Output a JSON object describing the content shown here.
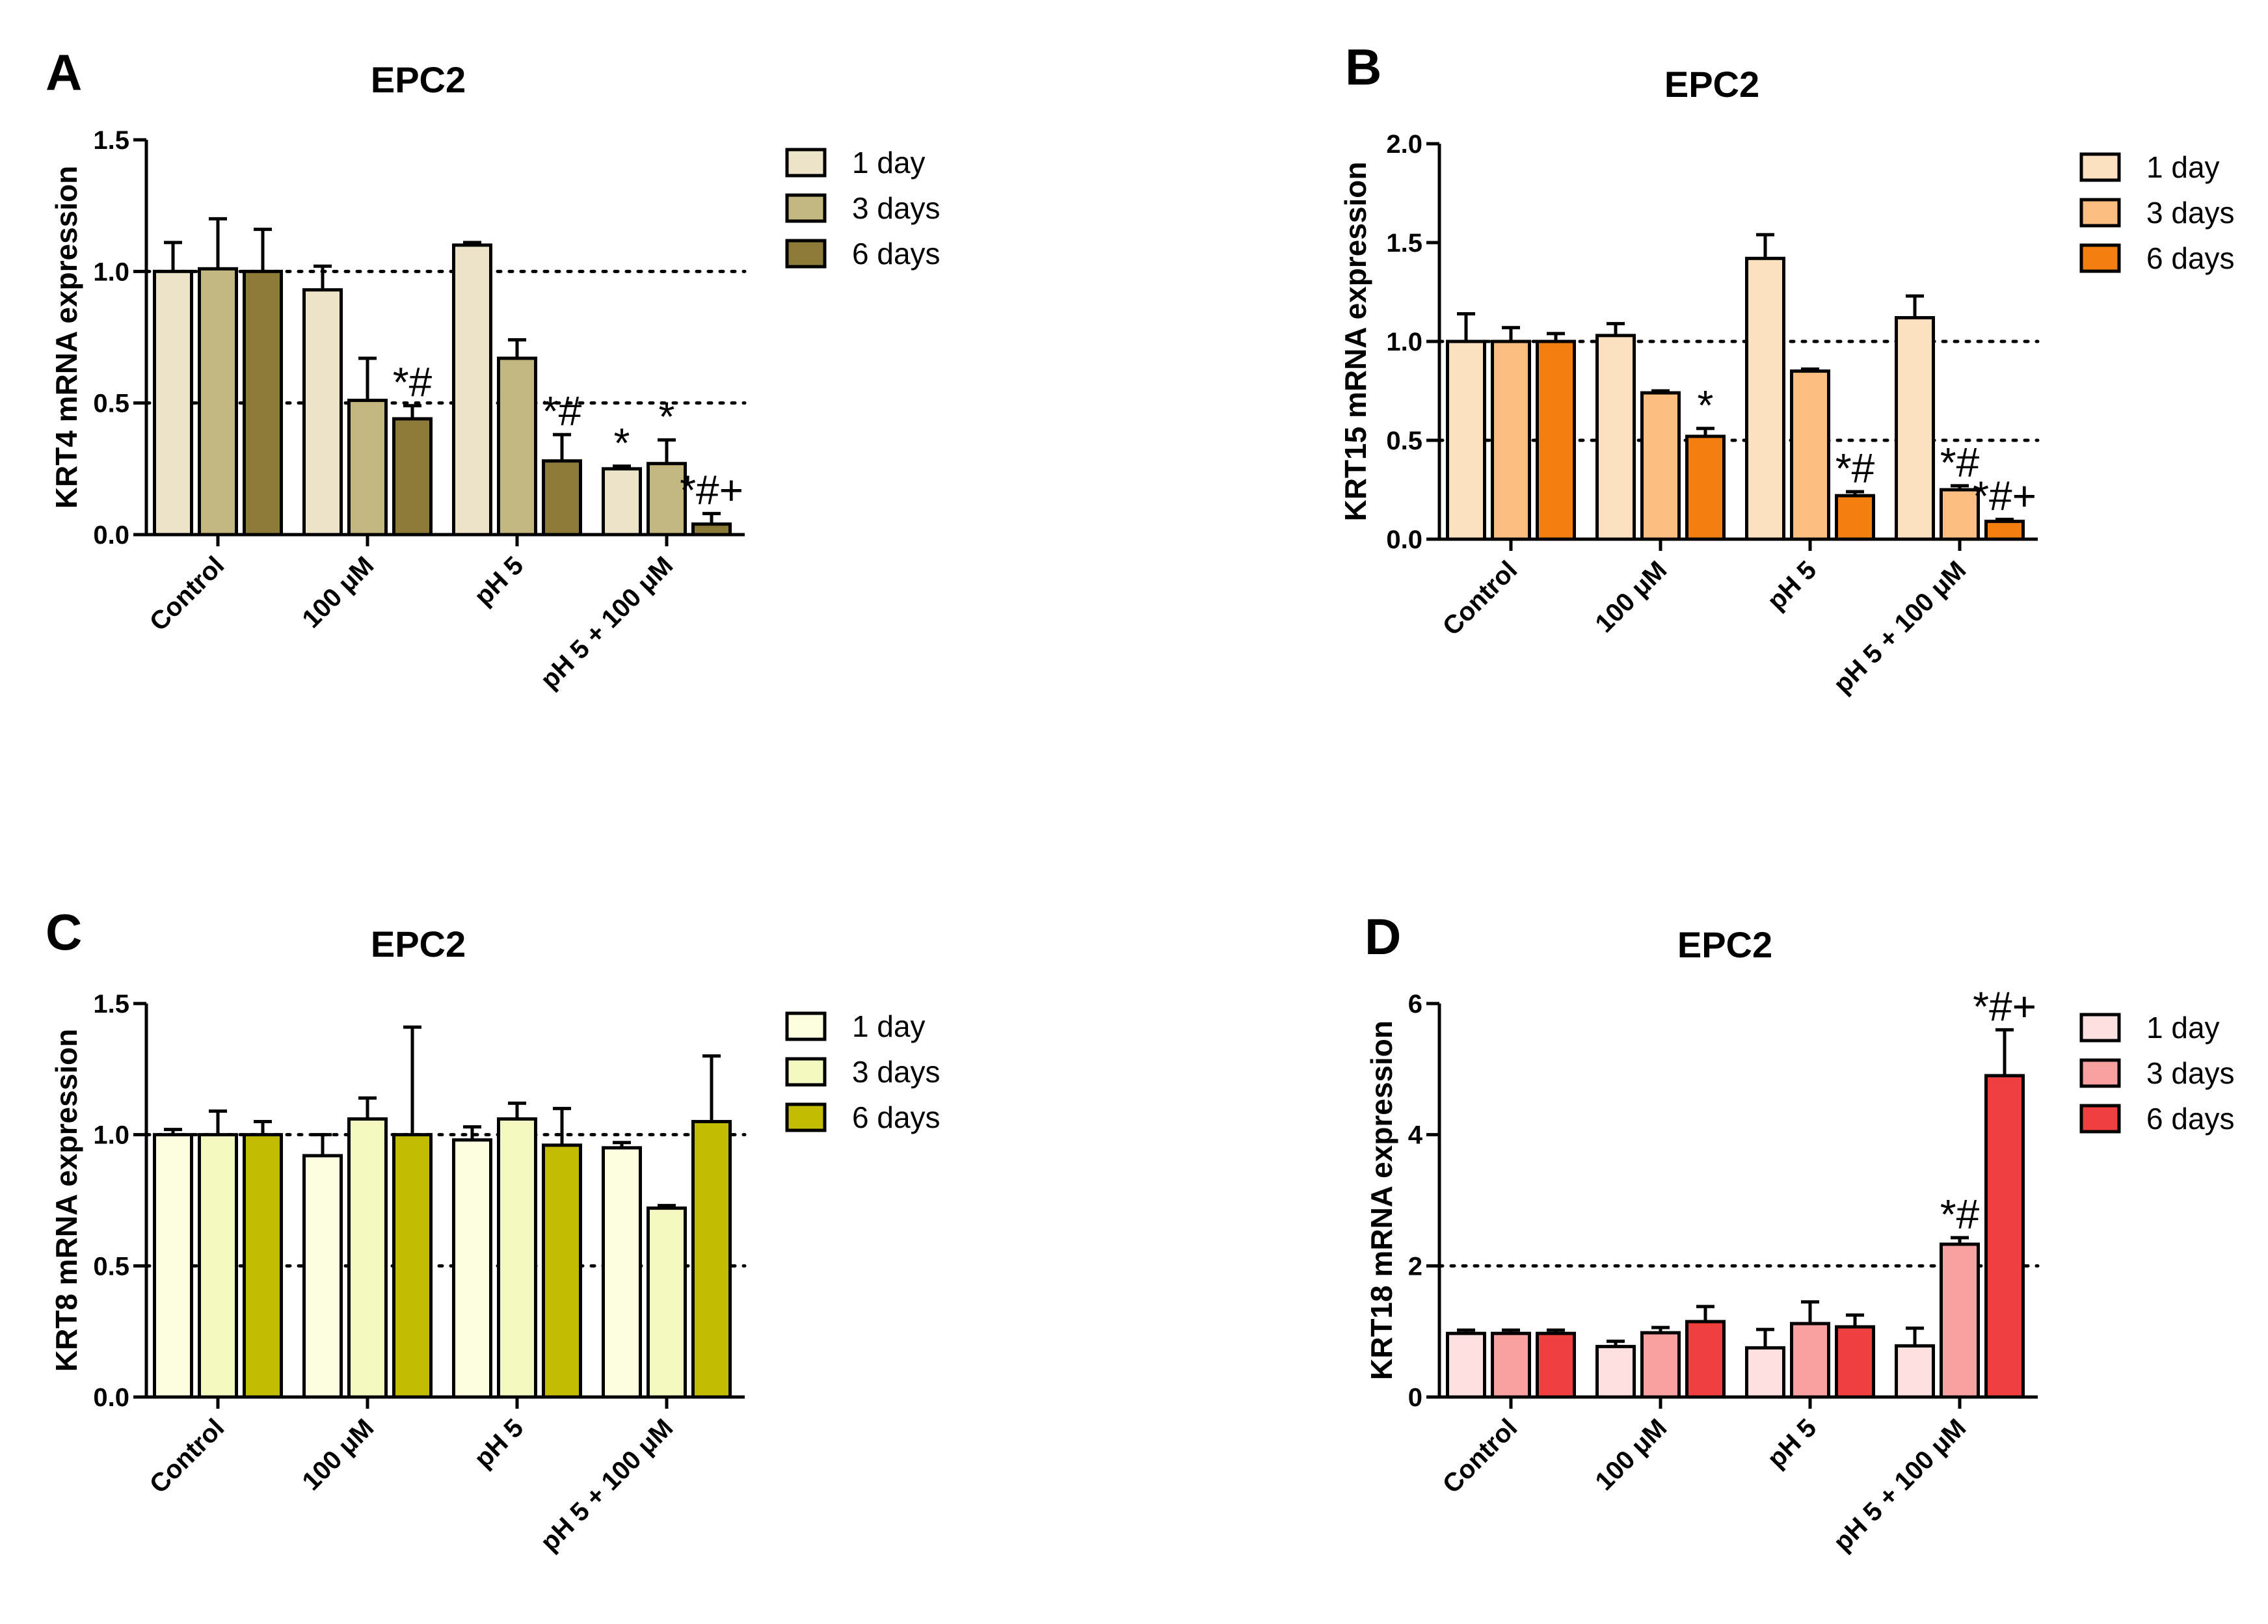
{
  "series_names": [
    "1 day",
    "3 days",
    "6 days"
  ],
  "chart_data": [
    {
      "panel": "A",
      "type": "bar",
      "title": "EPC2",
      "ylabel": "KRT4 mRNA expression",
      "categories": [
        "Control",
        "100 μM",
        "pH 5",
        "pH 5 + 100 μM"
      ],
      "ylim": [
        0,
        1.5
      ],
      "yticks": [
        "0.0",
        "0.5",
        "1.0",
        "1.5"
      ],
      "reference_lines": [
        0.5,
        1.0
      ],
      "legend_position": "right",
      "colors": [
        "#ece4c8",
        "#c3b780",
        "#8c7a38"
      ],
      "series": [
        {
          "name": "1 day",
          "values": [
            1.0,
            0.93,
            1.1,
            0.25
          ],
          "errors": [
            0.11,
            0.09,
            0.01,
            0.01
          ],
          "annotations": [
            "",
            "",
            "",
            "*"
          ]
        },
        {
          "name": "3 days",
          "values": [
            1.01,
            0.51,
            0.67,
            0.27
          ],
          "errors": [
            0.19,
            0.16,
            0.07,
            0.09
          ],
          "annotations": [
            "",
            "",
            "",
            "*"
          ]
        },
        {
          "name": "6 days",
          "values": [
            1.0,
            0.44,
            0.28,
            0.04
          ],
          "errors": [
            0.16,
            0.05,
            0.1,
            0.04
          ],
          "annotations": [
            "",
            "*#",
            "*#",
            "*#+"
          ]
        }
      ]
    },
    {
      "panel": "B",
      "type": "bar",
      "title": "EPC2",
      "ylabel": "KRT15 mRNA expression",
      "categories": [
        "Control",
        "100 μM",
        "pH 5",
        "pH 5 + 100 μM"
      ],
      "ylim": [
        0,
        2.0
      ],
      "yticks": [
        "0.0",
        "0.5",
        "1.0",
        "1.5",
        "2.0"
      ],
      "reference_lines": [
        0.5,
        1.0
      ],
      "legend_position": "right",
      "colors": [
        "#fde0c0",
        "#fbbd80",
        "#f57e10"
      ],
      "series": [
        {
          "name": "1 day",
          "values": [
            1.0,
            1.03,
            1.42,
            1.12
          ],
          "errors": [
            0.14,
            0.06,
            0.12,
            0.11
          ],
          "annotations": [
            "",
            "",
            "",
            ""
          ]
        },
        {
          "name": "3 days",
          "values": [
            1.0,
            0.74,
            0.85,
            0.25
          ],
          "errors": [
            0.07,
            0.01,
            0.01,
            0.02
          ],
          "annotations": [
            "",
            "",
            "",
            "*#"
          ]
        },
        {
          "name": "6 days",
          "values": [
            1.0,
            0.52,
            0.22,
            0.09
          ],
          "errors": [
            0.04,
            0.04,
            0.02,
            0.01
          ],
          "annotations": [
            "",
            "*",
            "*#",
            "*#+"
          ]
        }
      ]
    },
    {
      "panel": "C",
      "type": "bar",
      "title": "EPC2",
      "ylabel": "KRT8 mRNA expression",
      "categories": [
        "Control",
        "100 μM",
        "pH 5",
        "pH 5 + 100 μM"
      ],
      "ylim": [
        0,
        1.5
      ],
      "yticks": [
        "0.0",
        "0.5",
        "1.0",
        "1.5"
      ],
      "reference_lines": [
        0.5,
        1.0
      ],
      "legend_position": "right",
      "colors": [
        "#fdfde0",
        "#f2f8c0",
        "#c2bc00"
      ],
      "series": [
        {
          "name": "1 day",
          "values": [
            1.0,
            0.92,
            0.98,
            0.95
          ],
          "errors": [
            0.02,
            0.08,
            0.05,
            0.02
          ],
          "annotations": [
            "",
            "",
            "",
            ""
          ]
        },
        {
          "name": "3 days",
          "values": [
            1.0,
            1.06,
            1.06,
            0.72
          ],
          "errors": [
            0.09,
            0.08,
            0.06,
            0.01
          ],
          "annotations": [
            "",
            "",
            "",
            ""
          ]
        },
        {
          "name": "6 days",
          "values": [
            1.0,
            1.0,
            0.96,
            1.05
          ],
          "errors": [
            0.05,
            0.41,
            0.14,
            0.25
          ],
          "annotations": [
            "",
            "",
            "",
            ""
          ]
        }
      ]
    },
    {
      "panel": "D",
      "type": "bar",
      "title": "EPC2",
      "ylabel": "KRT18 mRNA expression",
      "categories": [
        "Control",
        "100 μM",
        "pH 5",
        "pH 5 + 100 μM"
      ],
      "ylim": [
        0,
        6
      ],
      "yticks": [
        "0",
        "2",
        "4",
        "6"
      ],
      "reference_lines": [
        2.0
      ],
      "legend_position": "right",
      "colors": [
        "#fde0e0",
        "#f9a0a0",
        "#ef4040"
      ],
      "series": [
        {
          "name": "1 day",
          "values": [
            0.97,
            0.77,
            0.75,
            0.78
          ],
          "errors": [
            0.05,
            0.08,
            0.28,
            0.27
          ],
          "annotations": [
            "",
            "",
            "",
            ""
          ]
        },
        {
          "name": "3 days",
          "values": [
            0.97,
            0.98,
            1.12,
            2.33
          ],
          "errors": [
            0.05,
            0.08,
            0.33,
            0.1
          ],
          "annotations": [
            "",
            "",
            "",
            "*#"
          ]
        },
        {
          "name": "6 days",
          "values": [
            0.97,
            1.15,
            1.07,
            4.9
          ],
          "errors": [
            0.05,
            0.23,
            0.18,
            0.7
          ],
          "annotations": [
            "",
            "",
            "",
            "*#+"
          ]
        }
      ]
    }
  ]
}
